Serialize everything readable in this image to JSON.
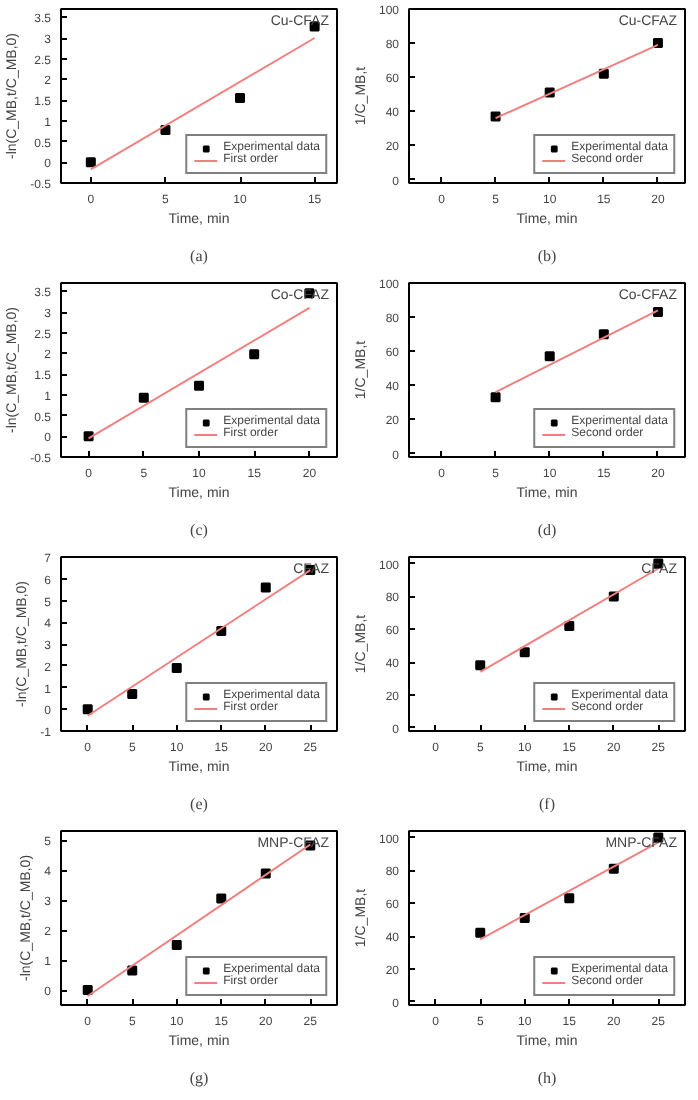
{
  "chart_data": [
    {
      "type": "scatter",
      "title": "(a)",
      "annotations": [
        "Cu-CFAZ"
      ],
      "xlabel": "Time, min",
      "ylabel": "-ln(C_MB,t/C_MB,0)",
      "xlim": [
        -2,
        16.5
      ],
      "xticks": [
        0,
        5,
        10,
        15
      ],
      "ylim": [
        -0.5,
        3.7
      ],
      "yticks": [
        -0.5,
        0.0,
        0.5,
        1.0,
        1.5,
        2.0,
        2.5,
        3.0,
        3.5
      ],
      "legend": "bottom right",
      "grid": false,
      "series": [
        {
          "name": "Experimental data",
          "marker": "square",
          "color": "#000000",
          "x": [
            0,
            5,
            10,
            15
          ],
          "values": [
            0.0,
            0.78,
            1.55,
            3.28
          ]
        },
        {
          "name": "First order",
          "type": "line",
          "marker": "none",
          "color": "#f08080",
          "x": [
            0,
            15
          ],
          "values": [
            -0.17,
            3.0
          ]
        }
      ]
    },
    {
      "type": "scatter",
      "title": "(b)",
      "annotations": [
        "Cu-CFAZ"
      ],
      "xlabel": "Time, min",
      "ylabel": "1/C_MB,t",
      "xlim": [
        -3,
        22.5
      ],
      "xticks": [
        0,
        5,
        10,
        15,
        20
      ],
      "ylim": [
        -2,
        100
      ],
      "yticks": [
        0,
        20,
        40,
        60,
        80,
        100
      ],
      "legend": "bottom right",
      "grid": false,
      "series": [
        {
          "name": "Experimental data",
          "marker": "square",
          "color": "#000000",
          "x": [
            5,
            10,
            15,
            20
          ],
          "values": [
            37,
            51,
            62,
            80
          ]
        },
        {
          "name": "Second order",
          "type": "line",
          "marker": "none",
          "color": "#f08080",
          "x": [
            5,
            20
          ],
          "values": [
            36,
            79
          ]
        }
      ]
    },
    {
      "type": "scatter",
      "title": "(c)",
      "annotations": [
        "Co-CFAZ"
      ],
      "xlabel": "Time, min",
      "ylabel": "-ln(C_MB,t/C_MB,0)",
      "xlim": [
        -2.5,
        22.5
      ],
      "xticks": [
        0,
        5,
        10,
        15,
        20
      ],
      "ylim": [
        -0.5,
        3.7
      ],
      "yticks": [
        -0.5,
        0.0,
        0.5,
        1.0,
        1.5,
        2.0,
        2.5,
        3.0,
        3.5
      ],
      "legend": "bottom right",
      "grid": false,
      "series": [
        {
          "name": "Experimental data",
          "marker": "square",
          "color": "#000000",
          "x": [
            0,
            5,
            10,
            15,
            20
          ],
          "values": [
            0.0,
            0.93,
            1.22,
            1.98,
            3.45
          ]
        },
        {
          "name": "First order",
          "type": "line",
          "marker": "none",
          "color": "#f08080",
          "x": [
            0,
            20
          ],
          "values": [
            -0.05,
            3.1
          ]
        }
      ]
    },
    {
      "type": "scatter",
      "title": "(d)",
      "annotations": [
        "Co-CFAZ"
      ],
      "xlabel": "Time, min",
      "ylabel": "1/C_MB,t",
      "xlim": [
        -3,
        22.5
      ],
      "xticks": [
        0,
        5,
        10,
        15,
        20
      ],
      "ylim": [
        -2,
        100
      ],
      "yticks": [
        0,
        20,
        40,
        60,
        80,
        100
      ],
      "legend": "bottom right",
      "grid": false,
      "series": [
        {
          "name": "Experimental data",
          "marker": "square",
          "color": "#000000",
          "x": [
            5,
            10,
            15,
            20
          ],
          "values": [
            33,
            57,
            70,
            83
          ]
        },
        {
          "name": "Second order",
          "type": "line",
          "marker": "none",
          "color": "#f08080",
          "x": [
            5,
            20
          ],
          "values": [
            36,
            84
          ]
        }
      ]
    },
    {
      "type": "scatter",
      "title": "(e)",
      "annotations": [
        "CFAZ"
      ],
      "xlabel": "Time, min",
      "ylabel": "-ln(C_MB,t/C_MB,0)",
      "xlim": [
        -3,
        28
      ],
      "xticks": [
        0,
        5,
        10,
        15,
        20,
        25
      ],
      "ylim": [
        -1,
        7
      ],
      "yticks": [
        -1,
        0,
        1,
        2,
        3,
        4,
        5,
        6,
        7
      ],
      "legend": "bottom right",
      "grid": false,
      "series": [
        {
          "name": "Experimental data",
          "marker": "square",
          "color": "#000000",
          "x": [
            0,
            5,
            10,
            15,
            20,
            25
          ],
          "values": [
            0.0,
            0.7,
            1.9,
            3.6,
            5.6,
            6.4
          ]
        },
        {
          "name": "First order",
          "type": "line",
          "marker": "none",
          "color": "#f08080",
          "x": [
            0,
            25
          ],
          "values": [
            -0.3,
            6.4
          ]
        }
      ]
    },
    {
      "type": "scatter",
      "title": "(f)",
      "annotations": [
        "CFAZ"
      ],
      "xlabel": "Time, min",
      "ylabel": "1/C_MB,t",
      "xlim": [
        -3,
        28
      ],
      "xticks": [
        0,
        5,
        10,
        15,
        20,
        25
      ],
      "ylim": [
        -2,
        104
      ],
      "yticks": [
        0,
        20,
        40,
        60,
        80,
        100
      ],
      "legend": "bottom right",
      "grid": false,
      "series": [
        {
          "name": "Experimental data",
          "marker": "square",
          "color": "#000000",
          "x": [
            5,
            10,
            15,
            20,
            25
          ],
          "values": [
            38,
            46,
            62,
            80,
            100
          ]
        },
        {
          "name": "Second order",
          "type": "line",
          "marker": "none",
          "color": "#f08080",
          "x": [
            5,
            25
          ],
          "values": [
            34,
            97
          ]
        }
      ]
    },
    {
      "type": "scatter",
      "title": "(g)",
      "annotations": [
        "MNP-CFAZ"
      ],
      "xlabel": "Time, min",
      "ylabel": "-ln(C_MB,t/C_MB,0)",
      "xlim": [
        -3,
        28
      ],
      "xticks": [
        0,
        5,
        10,
        15,
        20,
        25
      ],
      "ylim": [
        -0.5,
        5.3
      ],
      "yticks": [
        0,
        1,
        2,
        3,
        4,
        5
      ],
      "legend": "bottom right",
      "grid": false,
      "series": [
        {
          "name": "Experimental data",
          "marker": "square",
          "color": "#000000",
          "x": [
            0,
            5,
            10,
            15,
            20,
            25
          ],
          "values": [
            0.0,
            0.65,
            1.5,
            3.05,
            3.88,
            4.82
          ]
        },
        {
          "name": "First order",
          "type": "line",
          "marker": "none",
          "color": "#f08080",
          "x": [
            0,
            25
          ],
          "values": [
            -0.2,
            4.85
          ]
        }
      ]
    },
    {
      "type": "scatter",
      "title": "(h)",
      "annotations": [
        "MNP-CFAZ"
      ],
      "xlabel": "Time, min",
      "ylabel": "1/C_MB,t",
      "xlim": [
        -3,
        28
      ],
      "xticks": [
        0,
        5,
        10,
        15,
        20,
        25
      ],
      "ylim": [
        -2,
        104
      ],
      "yticks": [
        0,
        20,
        40,
        60,
        80,
        100
      ],
      "legend": "bottom right",
      "grid": false,
      "series": [
        {
          "name": "Experimental data",
          "marker": "square",
          "color": "#000000",
          "x": [
            5,
            10,
            15,
            20,
            25
          ],
          "values": [
            42,
            51,
            63,
            81,
            100
          ]
        },
        {
          "name": "Second order",
          "type": "line",
          "marker": "none",
          "color": "#f08080",
          "x": [
            5,
            25
          ],
          "values": [
            38,
            97
          ]
        }
      ]
    }
  ]
}
